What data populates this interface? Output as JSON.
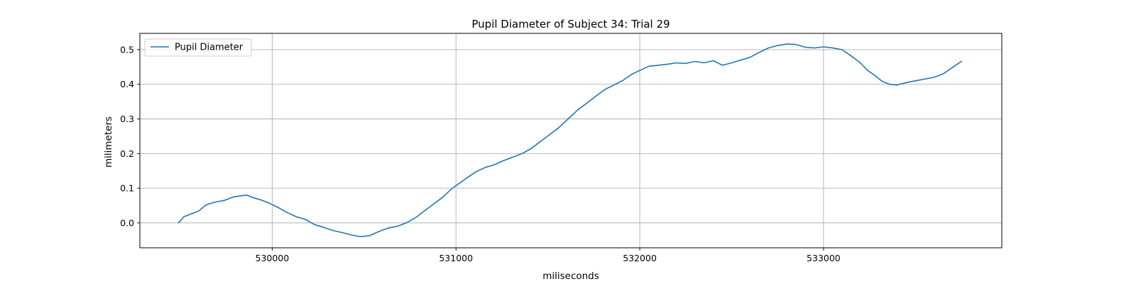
{
  "chart_data": {
    "type": "line",
    "title": "Pupil Diameter of Subject 34: Trial 29",
    "xlabel": "miliseconds",
    "ylabel": "milimeters",
    "xlim": [
      529280,
      533970
    ],
    "ylim": [
      -0.072,
      0.547
    ],
    "xticks": [
      530000,
      531000,
      532000,
      533000
    ],
    "xtick_labels": [
      "530000",
      "531000",
      "532000",
      "533000"
    ],
    "yticks": [
      0.0,
      0.1,
      0.2,
      0.3,
      0.4,
      0.5
    ],
    "ytick_labels": [
      "0.0",
      "0.1",
      "0.2",
      "0.3",
      "0.4",
      "0.5"
    ],
    "grid": true,
    "legend_position": "upper-left",
    "line_color": "#1f77b4",
    "series": [
      {
        "name": "Pupil Diameter",
        "x": [
          529490,
          529520,
          529560,
          529600,
          529640,
          529690,
          529740,
          529790,
          529830,
          529860,
          529900,
          529940,
          529980,
          530030,
          530080,
          530130,
          530180,
          530230,
          530280,
          530330,
          530380,
          530430,
          530480,
          530530,
          530580,
          530630,
          530680,
          530730,
          530780,
          530830,
          530880,
          530930,
          530980,
          531020,
          531060,
          531110,
          531160,
          531210,
          531260,
          531310,
          531360,
          531410,
          531460,
          531510,
          531560,
          531610,
          531660,
          531710,
          531760,
          531810,
          531860,
          531910,
          531960,
          532000,
          532050,
          532100,
          532150,
          532200,
          532250,
          532300,
          532350,
          532400,
          532450,
          532500,
          532550,
          532600,
          532650,
          532700,
          532750,
          532800,
          532850,
          532900,
          532950,
          533000,
          533050,
          533100,
          533150,
          533200,
          533240,
          533280,
          533320,
          533360,
          533400,
          533450,
          533500,
          533550,
          533600,
          533650,
          533700,
          533750
        ],
        "y": [
          0.0,
          0.018,
          0.026,
          0.034,
          0.052,
          0.06,
          0.065,
          0.075,
          0.078,
          0.08,
          0.072,
          0.066,
          0.058,
          0.045,
          0.03,
          0.018,
          0.01,
          -0.005,
          -0.013,
          -0.022,
          -0.028,
          -0.035,
          -0.04,
          -0.037,
          -0.025,
          -0.015,
          -0.01,
          0.0,
          0.015,
          0.035,
          0.055,
          0.075,
          0.1,
          0.115,
          0.13,
          0.148,
          0.16,
          0.168,
          0.18,
          0.19,
          0.2,
          0.215,
          0.235,
          0.255,
          0.275,
          0.3,
          0.325,
          0.345,
          0.365,
          0.385,
          0.398,
          0.412,
          0.43,
          0.44,
          0.452,
          0.455,
          0.458,
          0.462,
          0.46,
          0.466,
          0.462,
          0.468,
          0.455,
          0.462,
          0.47,
          0.478,
          0.492,
          0.505,
          0.512,
          0.516,
          0.515,
          0.507,
          0.505,
          0.508,
          0.505,
          0.5,
          0.482,
          0.462,
          0.44,
          0.425,
          0.408,
          0.4,
          0.398,
          0.405,
          0.41,
          0.415,
          0.42,
          0.43,
          0.448,
          0.466
        ]
      }
    ]
  }
}
